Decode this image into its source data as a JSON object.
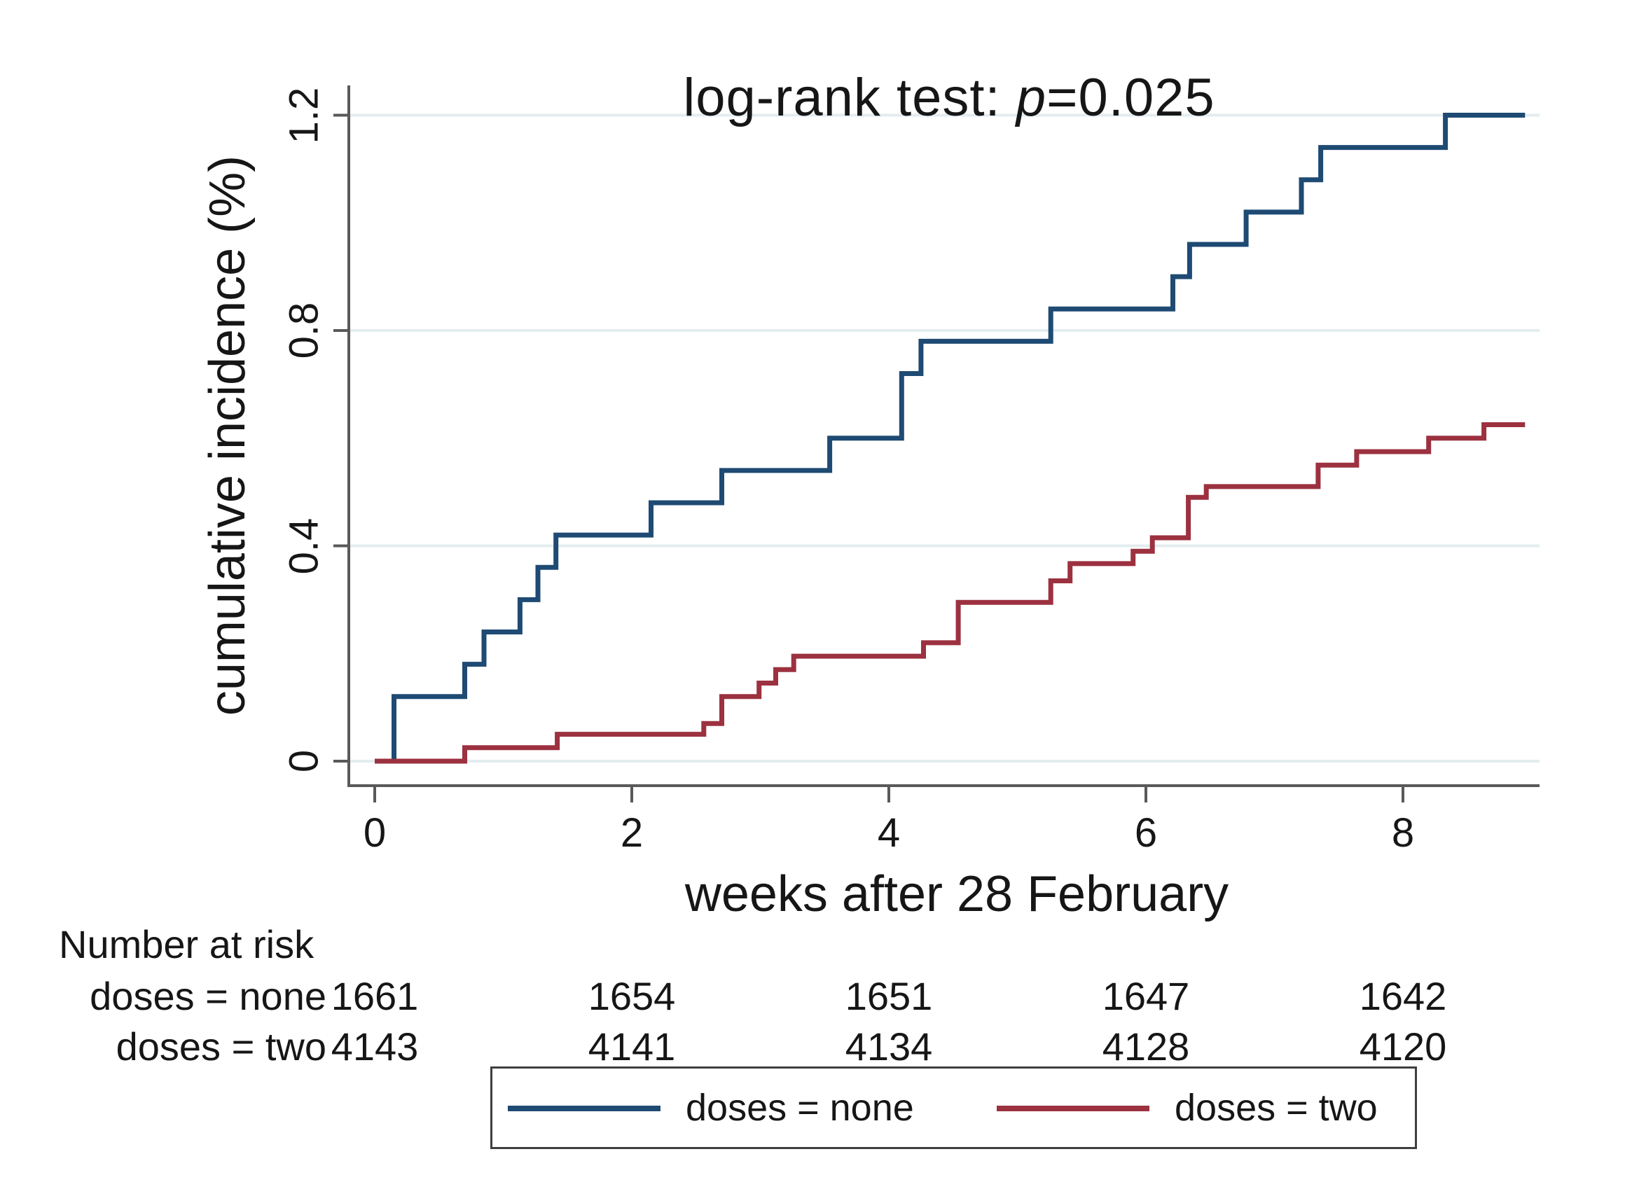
{
  "title": {
    "prefix": "log-rank test: ",
    "stat_symbol": "p",
    "value": "=0.025"
  },
  "axes": {
    "y_label": "cumulative incidence (%)",
    "x_label": "weeks after 28 February",
    "y_ticks": [
      0,
      0.4,
      0.8,
      1.2
    ],
    "y_tick_labels": [
      "0",
      "0.4",
      "0.8",
      "1.2"
    ],
    "x_ticks": [
      0,
      2,
      4,
      6,
      8
    ],
    "x_tick_labels": [
      "0",
      "2",
      "4",
      "6",
      "8"
    ]
  },
  "risk_table": {
    "header": "Number at risk",
    "rows": [
      {
        "label": "doses = none",
        "values": [
          "1661",
          "1654",
          "1651",
          "1647",
          "1642"
        ]
      },
      {
        "label": "doses = two",
        "values": [
          "4143",
          "4141",
          "4134",
          "4128",
          "4120"
        ]
      }
    ]
  },
  "legend": {
    "entries": [
      {
        "label": "doses = none",
        "color": "#1e4a73"
      },
      {
        "label": "doses = two",
        "color": "#9c3140"
      }
    ]
  },
  "colors": {
    "blue_series": "#1e4a73",
    "red_series": "#9c3140",
    "axis": "#595959",
    "grid": "#e3edf0",
    "text": "#161616",
    "legend_border": "#3f3f3f"
  },
  "chart_data": {
    "type": "line",
    "subtype": "step-post",
    "title": "log-rank test: p=0.025",
    "annotation": "log-rank test: p=0.025",
    "xlabel": "weeks after 28 February",
    "ylabel": "cumulative incidence (%)",
    "xlim": [
      0,
      9.06
    ],
    "ylim": [
      0,
      1.25
    ],
    "grid": "horizontal-only",
    "legend_position": "bottom",
    "x_units": "weeks",
    "y_units": "percent",
    "end_x": 8.95,
    "series": [
      {
        "name": "doses = none",
        "color": "#1e4a73",
        "start": [
          0,
          0
        ],
        "points": [
          [
            0.15,
            0.12
          ],
          [
            0.7,
            0.18
          ],
          [
            0.85,
            0.24
          ],
          [
            1.13,
            0.3
          ],
          [
            1.27,
            0.36
          ],
          [
            1.41,
            0.42
          ],
          [
            2.15,
            0.48
          ],
          [
            2.7,
            0.54
          ],
          [
            3.54,
            0.6
          ],
          [
            4.1,
            0.72
          ],
          [
            4.25,
            0.78
          ],
          [
            5.26,
            0.84
          ],
          [
            6.21,
            0.9
          ],
          [
            6.34,
            0.96
          ],
          [
            6.78,
            1.02
          ],
          [
            7.21,
            1.08
          ],
          [
            7.36,
            1.14
          ],
          [
            8.33,
            1.2
          ]
        ]
      },
      {
        "name": "doses = two",
        "color": "#9c3140",
        "start": [
          0,
          0
        ],
        "points": [
          [
            0.7,
            0.025
          ],
          [
            1.42,
            0.05
          ],
          [
            2.56,
            0.07
          ],
          [
            2.7,
            0.12
          ],
          [
            2.99,
            0.145
          ],
          [
            3.12,
            0.17
          ],
          [
            3.26,
            0.195
          ],
          [
            4.27,
            0.22
          ],
          [
            4.54,
            0.295
          ],
          [
            5.26,
            0.335
          ],
          [
            5.41,
            0.367
          ],
          [
            5.9,
            0.39
          ],
          [
            6.05,
            0.415
          ],
          [
            6.33,
            0.49
          ],
          [
            6.47,
            0.51
          ],
          [
            7.34,
            0.55
          ],
          [
            7.64,
            0.575
          ],
          [
            8.2,
            0.6
          ],
          [
            8.63,
            0.625
          ]
        ]
      }
    ],
    "number_at_risk": {
      "times": [
        0,
        2,
        4,
        6,
        8
      ],
      "doses = none": [
        1661,
        1654,
        1651,
        1647,
        1642
      ],
      "doses = two": [
        4143,
        4141,
        4134,
        4128,
        4120
      ]
    }
  }
}
